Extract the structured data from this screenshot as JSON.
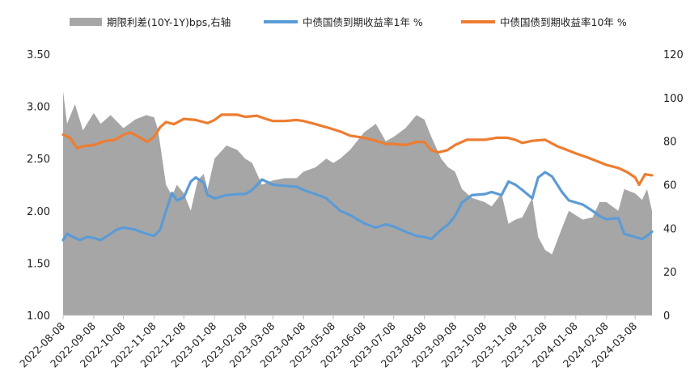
{
  "chart_data": {
    "type": "line",
    "legend": {
      "position": "top",
      "entries": [
        {
          "label": "期限利差(10Y-1Y)bps,右轴",
          "kind": "area",
          "color": "#a6a6a6"
        },
        {
          "label": "中债国债到期收益率1年 %",
          "kind": "line",
          "color": "#5b9bd5"
        },
        {
          "label": "中债国债到期收益率10年 %",
          "kind": "line",
          "color": "#ed7d31"
        }
      ]
    },
    "y_left": {
      "min": 1.0,
      "max": 3.5,
      "ticks": [
        "1.00",
        "1.50",
        "2.00",
        "2.50",
        "3.00",
        "3.50"
      ]
    },
    "y_right": {
      "min": 0,
      "max": 120,
      "ticks": [
        "0",
        "20",
        "40",
        "60",
        "80",
        "100",
        "120"
      ]
    },
    "x_ticks": [
      "2022-08-08",
      "2022-09-08",
      "2022-10-08",
      "2022-11-08",
      "2022-12-08",
      "2023-01-08",
      "2023-02-08",
      "2023-03-08",
      "2023-04-08",
      "2023-05-08",
      "2023-06-08",
      "2023-07-08",
      "2023-08-08",
      "2023-09-08",
      "2023-10-08",
      "2023-11-08",
      "2023-12-08",
      "2024-01-08",
      "2024-02-08",
      "2024-03-08"
    ],
    "x_range": [
      "2022-08-08",
      "2024-03-25"
    ],
    "grid": false,
    "series": [
      {
        "name": "中债国债到期收益率10年 %",
        "axis": "left",
        "color": "#ed7d31",
        "points": [
          [
            "2022-08-08",
            2.73
          ],
          [
            "2022-08-15",
            2.7
          ],
          [
            "2022-08-22",
            2.6
          ],
          [
            "2022-08-29",
            2.62
          ],
          [
            "2022-09-08",
            2.63
          ],
          [
            "2022-09-20",
            2.67
          ],
          [
            "2022-09-30",
            2.68
          ],
          [
            "2022-10-08",
            2.73
          ],
          [
            "2022-10-15",
            2.75
          ],
          [
            "2022-10-25",
            2.7
          ],
          [
            "2022-11-01",
            2.66
          ],
          [
            "2022-11-08",
            2.71
          ],
          [
            "2022-11-14",
            2.8
          ],
          [
            "2022-11-20",
            2.85
          ],
          [
            "2022-11-28",
            2.83
          ],
          [
            "2022-12-08",
            2.88
          ],
          [
            "2022-12-20",
            2.87
          ],
          [
            "2023-01-01",
            2.84
          ],
          [
            "2023-01-08",
            2.87
          ],
          [
            "2023-01-15",
            2.92
          ],
          [
            "2023-01-31",
            2.92
          ],
          [
            "2023-02-08",
            2.9
          ],
          [
            "2023-02-20",
            2.91
          ],
          [
            "2023-03-01",
            2.88
          ],
          [
            "2023-03-08",
            2.86
          ],
          [
            "2023-03-20",
            2.86
          ],
          [
            "2023-04-01",
            2.87
          ],
          [
            "2023-04-08",
            2.86
          ],
          [
            "2023-04-20",
            2.83
          ],
          [
            "2023-05-01",
            2.8
          ],
          [
            "2023-05-08",
            2.78
          ],
          [
            "2023-05-15",
            2.76
          ],
          [
            "2023-05-25",
            2.72
          ],
          [
            "2023-06-08",
            2.7
          ],
          [
            "2023-06-20",
            2.67
          ],
          [
            "2023-06-30",
            2.64
          ],
          [
            "2023-07-08",
            2.64
          ],
          [
            "2023-07-20",
            2.63
          ],
          [
            "2023-07-31",
            2.66
          ],
          [
            "2023-08-08",
            2.66
          ],
          [
            "2023-08-15",
            2.58
          ],
          [
            "2023-08-22",
            2.56
          ],
          [
            "2023-08-31",
            2.58
          ],
          [
            "2023-09-08",
            2.63
          ],
          [
            "2023-09-20",
            2.68
          ],
          [
            "2023-09-30",
            2.68
          ],
          [
            "2023-10-08",
            2.68
          ],
          [
            "2023-10-20",
            2.7
          ],
          [
            "2023-10-31",
            2.7
          ],
          [
            "2023-11-08",
            2.68
          ],
          [
            "2023-11-15",
            2.65
          ],
          [
            "2023-11-25",
            2.67
          ],
          [
            "2023-12-08",
            2.68
          ],
          [
            "2023-12-20",
            2.62
          ],
          [
            "2023-12-31",
            2.58
          ],
          [
            "2024-01-08",
            2.55
          ],
          [
            "2024-01-20",
            2.51
          ],
          [
            "2024-01-31",
            2.47
          ],
          [
            "2024-02-08",
            2.44
          ],
          [
            "2024-02-20",
            2.41
          ],
          [
            "2024-02-29",
            2.37
          ],
          [
            "2024-03-08",
            2.32
          ],
          [
            "2024-03-12",
            2.25
          ],
          [
            "2024-03-18",
            2.35
          ],
          [
            "2024-03-25",
            2.34
          ]
        ]
      },
      {
        "name": "中债国债到期收益率1年 %",
        "axis": "left",
        "color": "#5b9bd5",
        "points": [
          [
            "2022-08-08",
            1.72
          ],
          [
            "2022-08-12",
            1.78
          ],
          [
            "2022-08-18",
            1.75
          ],
          [
            "2022-08-25",
            1.72
          ],
          [
            "2022-09-01",
            1.75
          ],
          [
            "2022-09-08",
            1.74
          ],
          [
            "2022-09-15",
            1.72
          ],
          [
            "2022-09-25",
            1.78
          ],
          [
            "2022-10-01",
            1.82
          ],
          [
            "2022-10-08",
            1.84
          ],
          [
            "2022-10-20",
            1.82
          ],
          [
            "2022-10-31",
            1.78
          ],
          [
            "2022-11-08",
            1.76
          ],
          [
            "2022-11-14",
            1.82
          ],
          [
            "2022-11-20",
            2.0
          ],
          [
            "2022-11-26",
            2.17
          ],
          [
            "2022-12-01",
            2.1
          ],
          [
            "2022-12-08",
            2.13
          ],
          [
            "2022-12-15",
            2.28
          ],
          [
            "2022-12-20",
            2.32
          ],
          [
            "2022-12-28",
            2.27
          ],
          [
            "2023-01-01",
            2.15
          ],
          [
            "2023-01-08",
            2.12
          ],
          [
            "2023-01-20",
            2.15
          ],
          [
            "2023-02-01",
            2.16
          ],
          [
            "2023-02-08",
            2.16
          ],
          [
            "2023-02-15",
            2.2
          ],
          [
            "2023-02-25",
            2.3
          ],
          [
            "2023-03-08",
            2.25
          ],
          [
            "2023-03-20",
            2.24
          ],
          [
            "2023-04-01",
            2.23
          ],
          [
            "2023-04-08",
            2.2
          ],
          [
            "2023-04-20",
            2.16
          ],
          [
            "2023-05-01",
            2.12
          ],
          [
            "2023-05-08",
            2.06
          ],
          [
            "2023-05-15",
            2.0
          ],
          [
            "2023-05-25",
            1.96
          ],
          [
            "2023-06-08",
            1.88
          ],
          [
            "2023-06-20",
            1.84
          ],
          [
            "2023-06-30",
            1.87
          ],
          [
            "2023-07-08",
            1.85
          ],
          [
            "2023-07-20",
            1.8
          ],
          [
            "2023-07-31",
            1.76
          ],
          [
            "2023-08-08",
            1.75
          ],
          [
            "2023-08-15",
            1.73
          ],
          [
            "2023-08-25",
            1.82
          ],
          [
            "2023-09-01",
            1.87
          ],
          [
            "2023-09-08",
            1.95
          ],
          [
            "2023-09-15",
            2.08
          ],
          [
            "2023-09-25",
            2.15
          ],
          [
            "2023-10-08",
            2.16
          ],
          [
            "2023-10-15",
            2.18
          ],
          [
            "2023-10-25",
            2.15
          ],
          [
            "2023-11-01",
            2.28
          ],
          [
            "2023-11-08",
            2.25
          ],
          [
            "2023-11-15",
            2.2
          ],
          [
            "2023-11-25",
            2.12
          ],
          [
            "2023-12-01",
            2.32
          ],
          [
            "2023-12-08",
            2.37
          ],
          [
            "2023-12-15",
            2.33
          ],
          [
            "2023-12-25",
            2.18
          ],
          [
            "2024-01-01",
            2.1
          ],
          [
            "2024-01-08",
            2.08
          ],
          [
            "2024-01-15",
            2.06
          ],
          [
            "2024-01-25",
            2.0
          ],
          [
            "2024-02-01",
            1.95
          ],
          [
            "2024-02-08",
            1.92
          ],
          [
            "2024-02-20",
            1.93
          ],
          [
            "2024-02-26",
            1.78
          ],
          [
            "2024-03-08",
            1.75
          ],
          [
            "2024-03-15",
            1.73
          ],
          [
            "2024-03-20",
            1.76
          ],
          [
            "2024-03-25",
            1.8
          ]
        ]
      },
      {
        "name": "期限利差(10Y-1Y)bps,右轴",
        "axis": "right",
        "type": "area",
        "color": "#a6a6a6",
        "points": [
          [
            "2022-08-08",
            103
          ],
          [
            "2022-08-12",
            88
          ],
          [
            "2022-08-20",
            97
          ],
          [
            "2022-08-28",
            85
          ],
          [
            "2022-09-08",
            93
          ],
          [
            "2022-09-15",
            88
          ],
          [
            "2022-09-25",
            92
          ],
          [
            "2022-10-08",
            86
          ],
          [
            "2022-10-20",
            90
          ],
          [
            "2022-10-31",
            92
          ],
          [
            "2022-11-08",
            91
          ],
          [
            "2022-11-12",
            85
          ],
          [
            "2022-11-20",
            60
          ],
          [
            "2022-11-26",
            55
          ],
          [
            "2022-12-01",
            60
          ],
          [
            "2022-12-08",
            56
          ],
          [
            "2022-12-15",
            48
          ],
          [
            "2022-12-22",
            62
          ],
          [
            "2022-12-28",
            65
          ],
          [
            "2023-01-01",
            58
          ],
          [
            "2023-01-08",
            72
          ],
          [
            "2023-01-20",
            78
          ],
          [
            "2023-01-31",
            76
          ],
          [
            "2023-02-08",
            72
          ],
          [
            "2023-02-15",
            70
          ],
          [
            "2023-02-25",
            60
          ],
          [
            "2023-03-08",
            62
          ],
          [
            "2023-03-20",
            63
          ],
          [
            "2023-04-01",
            63
          ],
          [
            "2023-04-08",
            66
          ],
          [
            "2023-04-20",
            68
          ],
          [
            "2023-05-01",
            72
          ],
          [
            "2023-05-08",
            70
          ],
          [
            "2023-05-15",
            72
          ],
          [
            "2023-05-25",
            76
          ],
          [
            "2023-06-08",
            84
          ],
          [
            "2023-06-20",
            88
          ],
          [
            "2023-06-30",
            80
          ],
          [
            "2023-07-08",
            82
          ],
          [
            "2023-07-20",
            86
          ],
          [
            "2023-07-31",
            92
          ],
          [
            "2023-08-08",
            90
          ],
          [
            "2023-08-15",
            82
          ],
          [
            "2023-08-25",
            72
          ],
          [
            "2023-09-01",
            68
          ],
          [
            "2023-09-08",
            66
          ],
          [
            "2023-09-15",
            58
          ],
          [
            "2023-09-25",
            54
          ],
          [
            "2023-10-08",
            52
          ],
          [
            "2023-10-15",
            50
          ],
          [
            "2023-10-25",
            56
          ],
          [
            "2023-11-01",
            42
          ],
          [
            "2023-11-08",
            44
          ],
          [
            "2023-11-15",
            45
          ],
          [
            "2023-11-25",
            54
          ],
          [
            "2023-12-01",
            36
          ],
          [
            "2023-12-08",
            30
          ],
          [
            "2023-12-15",
            28
          ],
          [
            "2023-12-25",
            40
          ],
          [
            "2024-01-01",
            48
          ],
          [
            "2024-01-08",
            46
          ],
          [
            "2024-01-15",
            44
          ],
          [
            "2024-01-25",
            45
          ],
          [
            "2024-02-01",
            52
          ],
          [
            "2024-02-08",
            52
          ],
          [
            "2024-02-20",
            48
          ],
          [
            "2024-02-26",
            58
          ],
          [
            "2024-03-08",
            56
          ],
          [
            "2024-03-15",
            53
          ],
          [
            "2024-03-20",
            58
          ],
          [
            "2024-03-25",
            48
          ]
        ]
      }
    ]
  }
}
